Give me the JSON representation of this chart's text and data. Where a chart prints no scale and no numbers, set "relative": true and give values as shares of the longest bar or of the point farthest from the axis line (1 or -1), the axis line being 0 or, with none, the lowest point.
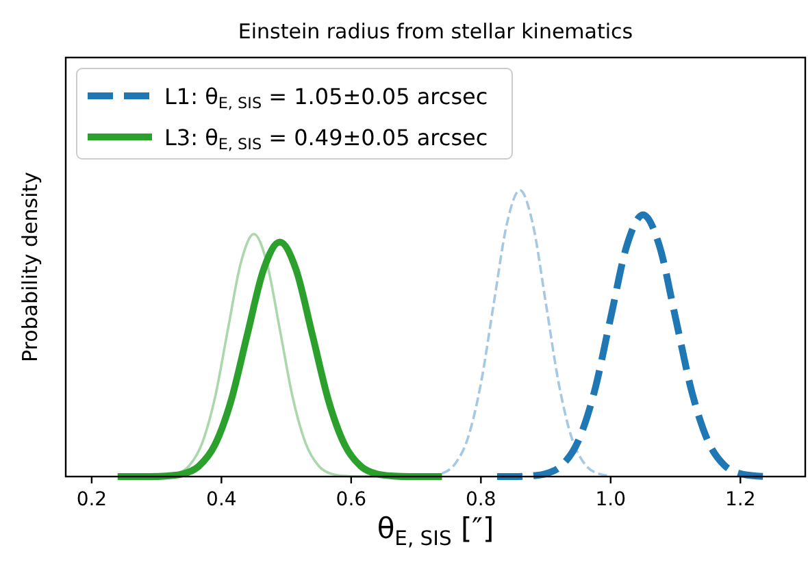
{
  "chart_data": {
    "type": "line",
    "title": "Einstein radius from stellar kinematics",
    "xlabel": "θ$_{E, SIS}$ [″]",
    "ylabel": "Probability density",
    "relative": true,
    "xlim": [
      0.16,
      1.3
    ],
    "xticks": [
      {
        "value": 0.2,
        "label": "0.2"
      },
      {
        "value": 0.4,
        "label": "0.4"
      },
      {
        "value": 0.6,
        "label": "0.6"
      },
      {
        "value": 0.8,
        "label": "0.8"
      },
      {
        "value": 1.0,
        "label": "1.0"
      },
      {
        "value": 1.2,
        "label": "1.2"
      }
    ],
    "tick_labels": "x",
    "legend": "top left",
    "grid": false,
    "series": [
      {
        "color": "#a6c9e3",
        "line_style": "dashed",
        "x": [
          0.74,
          0.76,
          0.78,
          0.8,
          0.82,
          0.84,
          0.86,
          0.88,
          0.9,
          0.92,
          0.94,
          0.96,
          0.98,
          1.0
        ],
        "values": [
          0.011,
          0.044,
          0.135,
          0.325,
          0.607,
          0.882,
          1,
          0.882,
          0.607,
          0.325,
          0.135,
          0.044,
          0.011,
          0.002
        ]
      },
      {
        "name": "L1: θ$_{E, SIS}$ = 1.05±0.05 arcsec",
        "color": "#1f77b4",
        "line_style": "dashed",
        "x": [
          0.825,
          0.85,
          0.875,
          0.9,
          0.925,
          0.95,
          0.975,
          1.0,
          1.025,
          1.05,
          1.075,
          1.1,
          1.125,
          1.15,
          1.175,
          1.2,
          1.225,
          1.25
        ],
        "values": [
          0,
          0,
          0.002,
          0.01,
          0.04,
          0.124,
          0.297,
          0.554,
          0.807,
          0.914,
          0.807,
          0.554,
          0.297,
          0.124,
          0.04,
          0.01,
          0.002,
          0
        ]
      },
      {
        "color": "#abd8ab",
        "line_style": "solid",
        "x": [
          0.25,
          0.27,
          0.29,
          0.31,
          0.33,
          0.35,
          0.37,
          0.39,
          0.41,
          0.43,
          0.45,
          0.47,
          0.49,
          0.51,
          0.53,
          0.55,
          0.57,
          0.59,
          0.61,
          0.63,
          0.65,
          0.67,
          0.69
        ],
        "values": [
          0,
          0,
          0,
          0.002,
          0.009,
          0.037,
          0.115,
          0.275,
          0.514,
          0.747,
          0.847,
          0.747,
          0.514,
          0.275,
          0.115,
          0.037,
          0.009,
          0.002,
          0,
          0,
          0,
          0,
          0
        ]
      },
      {
        "name": "L3: θ$_{E, SIS}$ = 0.49±0.05 arcsec",
        "color": "#2ca02c",
        "line_style": "solid",
        "x": [
          0.24,
          0.265,
          0.29,
          0.315,
          0.34,
          0.365,
          0.39,
          0.415,
          0.44,
          0.465,
          0.49,
          0.515,
          0.54,
          0.565,
          0.59,
          0.615,
          0.64,
          0.665,
          0.69,
          0.715,
          0.74
        ],
        "values": [
          0,
          0,
          0,
          0.002,
          0.009,
          0.036,
          0.111,
          0.266,
          0.497,
          0.723,
          0.819,
          0.723,
          0.497,
          0.266,
          0.111,
          0.036,
          0.009,
          0.002,
          0,
          0,
          0
        ]
      }
    ]
  }
}
